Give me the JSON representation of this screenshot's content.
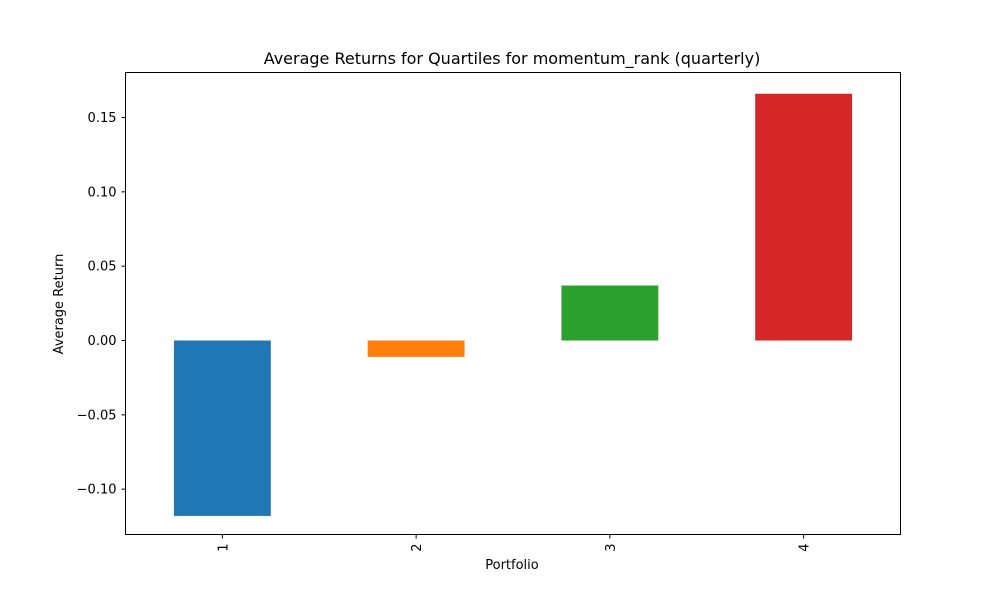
{
  "chart_data": {
    "type": "bar",
    "title": "Average Returns for Quartiles for momentum_rank (quarterly)",
    "xlabel": "Portfolio",
    "ylabel": "Average Return",
    "categories": [
      "1",
      "2",
      "3",
      "4"
    ],
    "values": [
      -0.118,
      -0.011,
      0.037,
      0.166
    ],
    "colors": [
      "#1f77b4",
      "#ff7f0e",
      "#2ca02c",
      "#d62728"
    ],
    "ylim": [
      -0.1305,
      0.1803
    ],
    "yticks": [
      -0.1,
      -0.05,
      0.0,
      0.05,
      0.1,
      0.15
    ],
    "ytick_labels": [
      "−0.10",
      "−0.05",
      "0.00",
      "0.05",
      "0.10",
      "0.15"
    ],
    "xtick_rotation": "vertical",
    "grid": false,
    "legend": "none"
  }
}
